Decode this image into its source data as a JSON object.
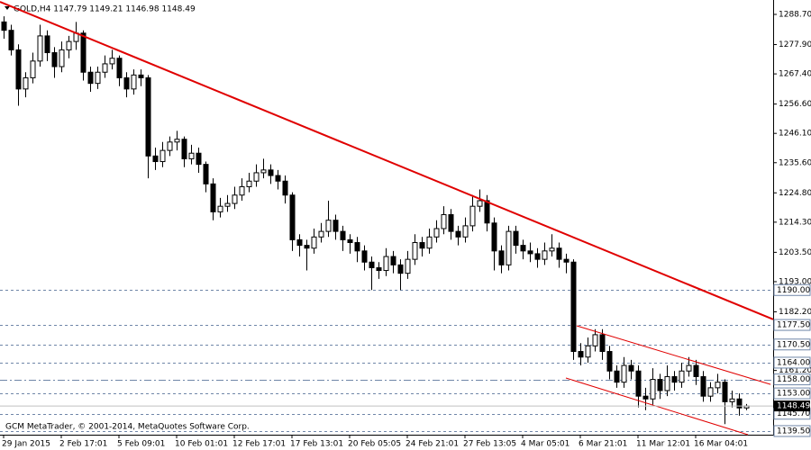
{
  "chart_data": {
    "type": "candlestick",
    "title": "GOLD,H4 1147.79 1149.21 1146.98 1148.49",
    "footer": "GCM MetaTrader, © 2001-2014, MetaQuotes Software Corp.",
    "categories": [
      "29 Jan 2015",
      null,
      null,
      null,
      null,
      null,
      null,
      null,
      "2 Feb 17:01",
      null,
      null,
      null,
      null,
      null,
      null,
      null,
      "5 Feb 09:01",
      null,
      null,
      null,
      null,
      null,
      null,
      null,
      "10 Feb 01:01",
      null,
      null,
      null,
      null,
      null,
      null,
      null,
      "12 Feb 17:01",
      null,
      null,
      null,
      null,
      null,
      null,
      null,
      "17 Feb 13:01",
      null,
      null,
      null,
      null,
      null,
      null,
      null,
      "20 Feb 05:05",
      null,
      null,
      null,
      null,
      null,
      null,
      null,
      "24 Feb 21:01",
      null,
      null,
      null,
      null,
      null,
      null,
      null,
      "27 Feb 13:05",
      null,
      null,
      null,
      null,
      null,
      null,
      null,
      "4 Mar 05:01",
      null,
      null,
      null,
      null,
      null,
      null,
      null,
      "6 Mar 21:01",
      null,
      null,
      null,
      null,
      null,
      null,
      null,
      "11 Mar 12:01",
      null,
      null,
      null,
      null,
      null,
      null,
      null,
      "16 Mar 04:01",
      null,
      null,
      null,
      null,
      null,
      null,
      null
    ],
    "open": [
      1286,
      1283,
      1276,
      1262,
      1266,
      1272,
      1281,
      1275,
      1270,
      1276,
      1279,
      1282,
      1268,
      1264,
      1268,
      1271,
      1273,
      1266,
      1262,
      1267,
      1266,
      1238,
      1236,
      1240,
      1243,
      1244,
      1237,
      1239,
      1235,
      1228,
      1218,
      1220,
      1221,
      1224,
      1227,
      1229,
      1232,
      1233,
      1231,
      1229,
      1224,
      1208,
      1206,
      1205,
      1209,
      1211,
      1215,
      1211,
      1208,
      1207,
      1204,
      1200,
      1198,
      1197,
      1202,
      1199,
      1196,
      1201,
      1207,
      1205,
      1209,
      1212,
      1217,
      1211,
      1209,
      1213,
      1220,
      1222,
      1214,
      1204,
      1199,
      1211,
      1206,
      1204,
      1203,
      1201,
      1204,
      1205,
      1201,
      1200,
      1168,
      1166,
      1170,
      1174,
      1168,
      1161,
      1157,
      1163,
      1161,
      1152,
      1151,
      1158,
      1154,
      1159,
      1157,
      1161,
      1163,
      1159,
      1152,
      1155,
      1157,
      1150,
      1151,
      1147.79
    ],
    "high": [
      1288,
      1285,
      1278,
      1268,
      1275,
      1285,
      1283,
      1277,
      1279,
      1281,
      1286,
      1283,
      1270,
      1270,
      1274,
      1276,
      1274,
      1268,
      1269,
      1269,
      1267,
      1241,
      1243,
      1245,
      1247,
      1245,
      1242,
      1241,
      1236,
      1230,
      1223,
      1224,
      1227,
      1230,
      1232,
      1235,
      1237,
      1235,
      1233,
      1231,
      1225,
      1210,
      1208,
      1212,
      1214,
      1222,
      1217,
      1213,
      1210,
      1209,
      1206,
      1202,
      1200,
      1205,
      1204,
      1201,
      1204,
      1210,
      1209,
      1212,
      1215,
      1220,
      1219,
      1213,
      1216,
      1224,
      1226,
      1224,
      1216,
      1206,
      1213,
      1213,
      1208,
      1207,
      1205,
      1207,
      1210,
      1207,
      1203,
      1201,
      1171,
      1173,
      1176,
      1176,
      1170,
      1163,
      1166,
      1165,
      1163,
      1155,
      1162,
      1160,
      1163,
      1161,
      1164,
      1166,
      1165,
      1161,
      1157,
      1160,
      1158,
      1154,
      1153,
      1149.21
    ],
    "low": [
      1280,
      1274,
      1256,
      1259,
      1264,
      1270,
      1272,
      1266,
      1268,
      1273,
      1276,
      1265,
      1261,
      1262,
      1266,
      1269,
      1263,
      1259,
      1260,
      1263,
      1230,
      1233,
      1234,
      1238,
      1240,
      1234,
      1235,
      1232,
      1225,
      1215,
      1216,
      1218,
      1219,
      1222,
      1225,
      1227,
      1230,
      1228,
      1226,
      1221,
      1204,
      1202,
      1197,
      1203,
      1207,
      1209,
      1208,
      1204,
      1203,
      1200,
      1197,
      1190,
      1194,
      1195,
      1196,
      1190,
      1194,
      1199,
      1202,
      1203,
      1207,
      1210,
      1208,
      1206,
      1207,
      1211,
      1218,
      1211,
      1197,
      1196,
      1197,
      1203,
      1201,
      1200,
      1198,
      1199,
      1202,
      1198,
      1196,
      1165,
      1163,
      1164,
      1168,
      1165,
      1158,
      1155,
      1155,
      1158,
      1148,
      1147,
      1149,
      1151,
      1152,
      1154,
      1155,
      1159,
      1156,
      1150,
      1150,
      1153,
      1142,
      1148,
      1145,
      1146.98
    ],
    "close": [
      1283,
      1276,
      1262,
      1266,
      1272,
      1281,
      1275,
      1270,
      1276,
      1279,
      1282,
      1268,
      1264,
      1268,
      1271,
      1273,
      1266,
      1262,
      1267,
      1266,
      1238,
      1236,
      1240,
      1243,
      1244,
      1237,
      1239,
      1235,
      1228,
      1218,
      1220,
      1221,
      1224,
      1227,
      1229,
      1232,
      1233,
      1231,
      1229,
      1224,
      1208,
      1206,
      1205,
      1209,
      1211,
      1215,
      1211,
      1208,
      1207,
      1204,
      1200,
      1198,
      1197,
      1202,
      1199,
      1196,
      1201,
      1207,
      1205,
      1209,
      1212,
      1217,
      1211,
      1209,
      1213,
      1220,
      1222,
      1214,
      1204,
      1199,
      1211,
      1206,
      1204,
      1203,
      1201,
      1204,
      1205,
      1201,
      1200,
      1168,
      1166,
      1170,
      1174,
      1168,
      1161,
      1157,
      1163,
      1161,
      1152,
      1151,
      1158,
      1154,
      1159,
      1157,
      1161,
      1163,
      1159,
      1152,
      1155,
      1157,
      1150,
      1151,
      1147.79,
      1148.49
    ],
    "up_color": "#ffffff",
    "down_color": "#000000",
    "ylim": [
      1138.2,
      1292.57
    ],
    "yticks": [
      {
        "value": 1288.7,
        "label": "1288.70"
      },
      {
        "value": 1277.9,
        "label": "1277.90"
      },
      {
        "value": 1267.4,
        "label": "1267.40"
      },
      {
        "value": 1256.6,
        "label": "1256.60"
      },
      {
        "value": 1246.1,
        "label": "1246.10"
      },
      {
        "value": 1235.6,
        "label": "1235.60"
      },
      {
        "value": 1224.8,
        "label": "1224.80"
      },
      {
        "value": 1214.3,
        "label": "1214.30"
      },
      {
        "value": 1203.5,
        "label": "1203.50"
      },
      {
        "value": 1193,
        "label": "1193.00"
      },
      {
        "value": 1182.2,
        "label": "1182.20"
      },
      {
        "value": 1161.2,
        "label": "1161.20"
      }
    ],
    "levels": [
      {
        "value": 1190,
        "label": "1190.00"
      },
      {
        "value": 1177.5,
        "label": "1177.50"
      },
      {
        "value": 1170.5,
        "label": "1170.50"
      },
      {
        "value": 1164,
        "label": "1164.00"
      },
      {
        "value": 1158,
        "label": "1158.00"
      },
      {
        "value": 1153,
        "label": "1153.00"
      },
      {
        "value": 1145.7,
        "label": "1145.70"
      },
      {
        "value": 1139.5,
        "label": "1139.50"
      }
    ],
    "level_color": "#6f86a8",
    "current_price": {
      "value": 1148.49,
      "label": "1148.49"
    },
    "trendlines": [
      {
        "color": "#e00000",
        "width": 2,
        "x": [
          -0.5,
          106.75
        ],
        "y": [
          1293.2,
          1179.5
        ]
      },
      {
        "color": "#e00000",
        "width": 1,
        "x": [
          79.5,
          106.4
        ],
        "y": [
          1177.2,
          1156.2
        ]
      },
      {
        "color": "#e00000",
        "width": 1,
        "x": [
          78,
          103.25
        ],
        "y": [
          1158.5,
          1138.2
        ]
      }
    ]
  }
}
